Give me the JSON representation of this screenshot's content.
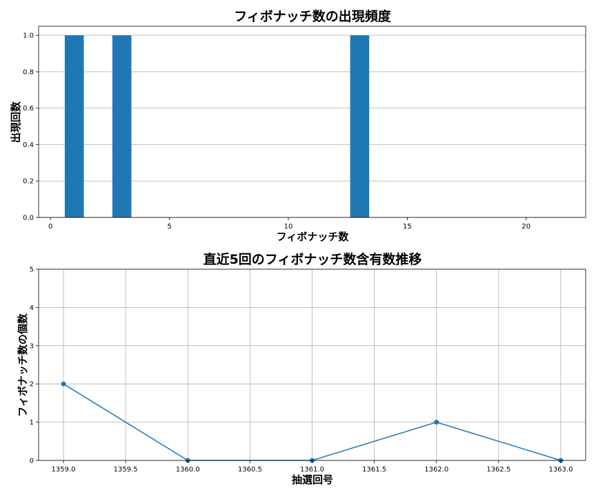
{
  "chart_data": [
    {
      "type": "bar",
      "title": "フィボナッチ数の出現頻度",
      "xlabel": "フィボナッチ数",
      "ylabel": "出現回数",
      "x": [
        1,
        3,
        13
      ],
      "values": [
        1.0,
        1.0,
        1.0
      ],
      "bar_width": 0.8,
      "xlim": [
        -0.5,
        22.5
      ],
      "ylim": [
        0,
        1.05
      ],
      "xticks": [
        0,
        5,
        10,
        15,
        20
      ],
      "xtick_labels": [
        "0",
        "5",
        "10",
        "15",
        "20"
      ],
      "yticks": [
        0.0,
        0.2,
        0.4,
        0.6,
        0.8,
        1.0
      ],
      "ytick_labels": [
        "0.0",
        "0.2",
        "0.4",
        "0.6",
        "0.8",
        "1.0"
      ],
      "grid": "y",
      "color": "#1f77b4"
    },
    {
      "type": "line",
      "title": "直近5回のフィボナッチ数含有数推移",
      "xlabel": "抽選回号",
      "ylabel": "フィボナッチ数の個数",
      "x": [
        1359,
        1360,
        1361,
        1362,
        1363
      ],
      "y": [
        2,
        0,
        0,
        1,
        0
      ],
      "markers": true,
      "xlim": [
        1358.8,
        1363.2
      ],
      "ylim": [
        0,
        5
      ],
      "xticks": [
        1359.0,
        1359.5,
        1360.0,
        1360.5,
        1361.0,
        1361.5,
        1362.0,
        1362.5,
        1363.0
      ],
      "xtick_labels": [
        "1359.0",
        "1359.5",
        "1360.0",
        "1360.5",
        "1361.0",
        "1361.5",
        "1362.0",
        "1362.5",
        "1363.0"
      ],
      "yticks": [
        0,
        1,
        2,
        3,
        4,
        5
      ],
      "ytick_labels": [
        "0",
        "1",
        "2",
        "3",
        "4",
        "5"
      ],
      "grid": "both",
      "color": "#1f77b4"
    }
  ]
}
